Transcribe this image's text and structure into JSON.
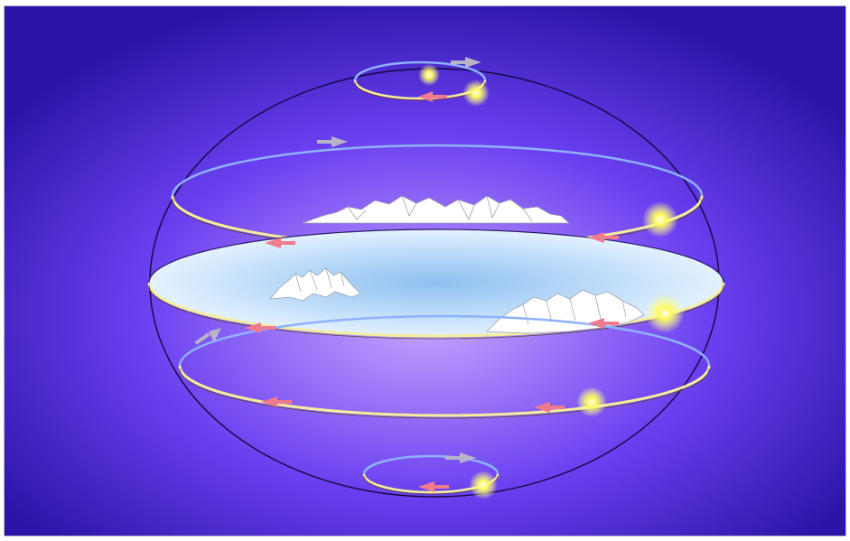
{
  "diagram": {
    "colors": {
      "background_center": "#c9a8ff",
      "background_mid": "#6a3ff0",
      "background_edge": "#2c14a6",
      "sphere_outline": "#12083f",
      "orbit_blue": "#8fb2ff",
      "orbit_yellow": "#f4ee9a",
      "arrow_gray": "#b8b4c8",
      "arrow_pink": "#f07a8e",
      "sun_core": "#fff95a",
      "sun_glow": "#ffff88",
      "horizon_disk": "#dcefff",
      "horizon_disk_center": "#8fc0f0",
      "mountain_fill": "#ffffff",
      "mountain_shade": "#c8ccd6"
    },
    "icons": [
      "sun-icon",
      "direction-arrow-icon",
      "mountain-icon"
    ]
  }
}
